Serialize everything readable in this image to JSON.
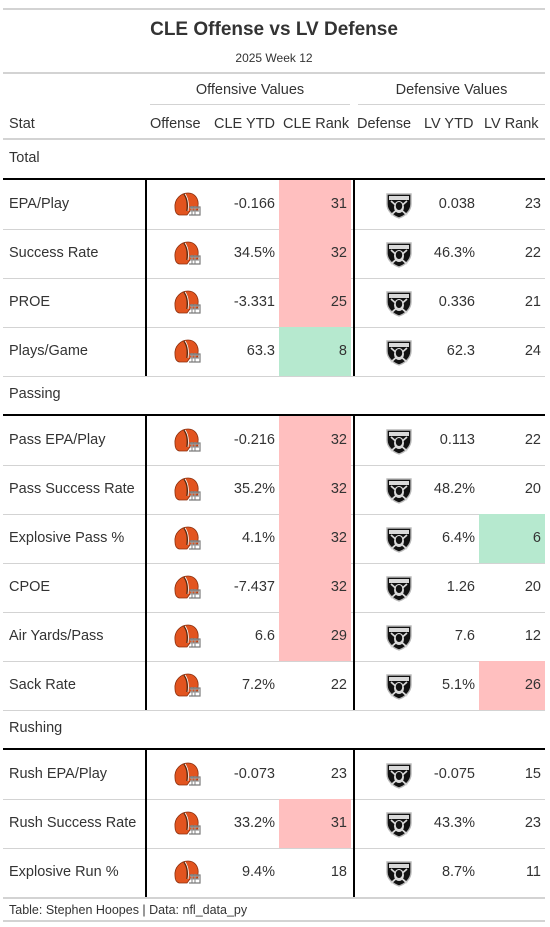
{
  "title": "CLE Offense vs LV Defense",
  "subtitle": "2025 Week 12",
  "spanners": {
    "offense": "Offensive Values",
    "defense": "Defensive Values"
  },
  "columns": {
    "stat": "Stat",
    "offense": "Offense",
    "cle_ytd": "CLE YTD",
    "cle_rank": "CLE Rank",
    "defense": "Defense",
    "lv_ytd": "LV YTD",
    "lv_rank": "LV Rank"
  },
  "colors": {
    "bad_rank": "#ffbfbf",
    "good_rank": "#b6e9cf",
    "browns_orange": "#e2541f",
    "raiders_black": "#111111"
  },
  "icons": {
    "offense_logo": "cleveland-browns-helmet-icon",
    "defense_logo": "las-vegas-raiders-shield-icon"
  },
  "groups": [
    {
      "label": "Total",
      "rows": [
        {
          "stat": "EPA/Play",
          "cle_ytd": "-0.166",
          "cle_rank": "31",
          "cle_flag": "bad",
          "lv_ytd": "0.038",
          "lv_rank": "23",
          "lv_flag": ""
        },
        {
          "stat": "Success Rate",
          "cle_ytd": "34.5%",
          "cle_rank": "32",
          "cle_flag": "bad",
          "lv_ytd": "46.3%",
          "lv_rank": "22",
          "lv_flag": ""
        },
        {
          "stat": "PROE",
          "cle_ytd": "-3.331",
          "cle_rank": "25",
          "cle_flag": "bad",
          "lv_ytd": "0.336",
          "lv_rank": "21",
          "lv_flag": ""
        },
        {
          "stat": "Plays/Game",
          "cle_ytd": "63.3",
          "cle_rank": "8",
          "cle_flag": "good",
          "lv_ytd": "62.3",
          "lv_rank": "24",
          "lv_flag": ""
        }
      ]
    },
    {
      "label": "Passing",
      "rows": [
        {
          "stat": "Pass EPA/Play",
          "cle_ytd": "-0.216",
          "cle_rank": "32",
          "cle_flag": "bad",
          "lv_ytd": "0.113",
          "lv_rank": "22",
          "lv_flag": ""
        },
        {
          "stat": "Pass Success Rate",
          "cle_ytd": "35.2%",
          "cle_rank": "32",
          "cle_flag": "bad",
          "lv_ytd": "48.2%",
          "lv_rank": "20",
          "lv_flag": ""
        },
        {
          "stat": "Explosive Pass %",
          "cle_ytd": "4.1%",
          "cle_rank": "32",
          "cle_flag": "bad",
          "lv_ytd": "6.4%",
          "lv_rank": "6",
          "lv_flag": "good"
        },
        {
          "stat": "CPOE",
          "cle_ytd": "-7.437",
          "cle_rank": "32",
          "cle_flag": "bad",
          "lv_ytd": "1.26",
          "lv_rank": "20",
          "lv_flag": ""
        },
        {
          "stat": "Air Yards/Pass",
          "cle_ytd": "6.6",
          "cle_rank": "29",
          "cle_flag": "bad",
          "lv_ytd": "7.6",
          "lv_rank": "12",
          "lv_flag": ""
        },
        {
          "stat": "Sack Rate",
          "cle_ytd": "7.2%",
          "cle_rank": "22",
          "cle_flag": "",
          "lv_ytd": "5.1%",
          "lv_rank": "26",
          "lv_flag": "bad"
        }
      ]
    },
    {
      "label": "Rushing",
      "rows": [
        {
          "stat": "Rush EPA/Play",
          "cle_ytd": "-0.073",
          "cle_rank": "23",
          "cle_flag": "",
          "lv_ytd": "-0.075",
          "lv_rank": "15",
          "lv_flag": ""
        },
        {
          "stat": "Rush Success Rate",
          "cle_ytd": "33.2%",
          "cle_rank": "31",
          "cle_flag": "bad",
          "lv_ytd": "43.3%",
          "lv_rank": "23",
          "lv_flag": ""
        },
        {
          "stat": "Explosive Run %",
          "cle_ytd": "9.4%",
          "cle_rank": "18",
          "cle_flag": "",
          "lv_ytd": "8.7%",
          "lv_rank": "11",
          "lv_flag": ""
        }
      ]
    }
  ],
  "footer": "Table: Stephen Hoopes | Data: nfl_data_py"
}
